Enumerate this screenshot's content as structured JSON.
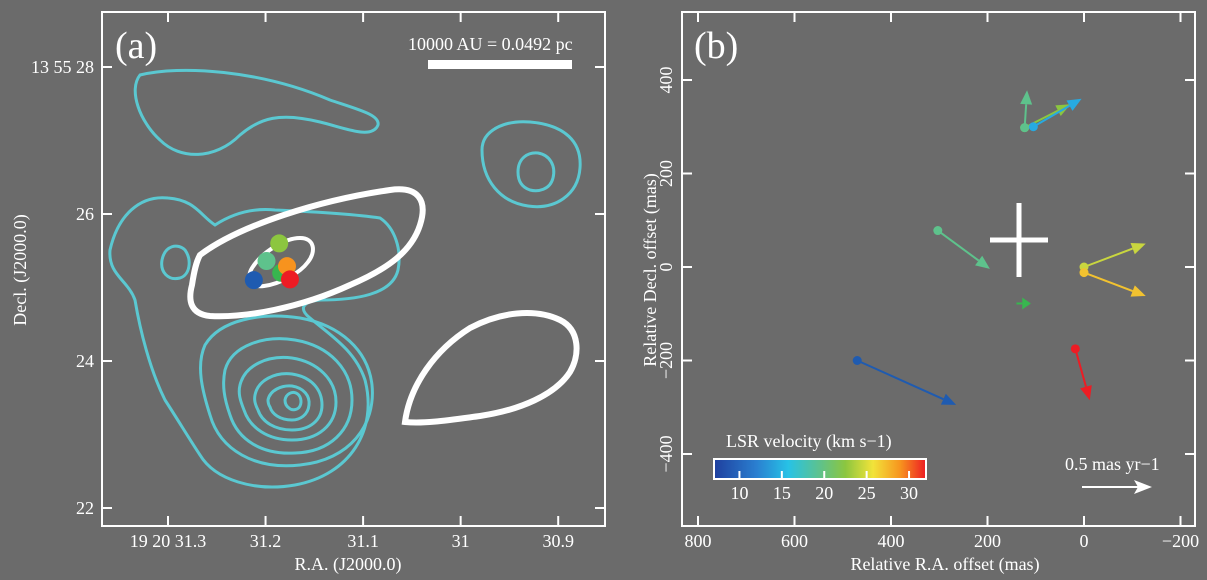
{
  "chart_data": [
    {
      "type": "scatter",
      "panel_label": "(a)",
      "xlabel": "R.A. (J2000.0)",
      "ylabel": "Decl. (J2000.0)",
      "xticks": [
        {
          "value": 31.3,
          "label": "19 20 31.3"
        },
        {
          "value": 31.2,
          "label": "31.2"
        },
        {
          "value": 31.1,
          "label": "31.1"
        },
        {
          "value": 31.0,
          "label": "31"
        },
        {
          "value": 30.9,
          "label": "30.9"
        }
      ],
      "yticks": [
        {
          "value": 28,
          "label": "13 55 28"
        },
        {
          "value": 26,
          "label": "26"
        },
        {
          "value": 24,
          "label": "24"
        },
        {
          "value": 22,
          "label": "22"
        }
      ],
      "scale_bar": "10000 AU = 0.0492 pc",
      "maser_spots": [
        {
          "ra": 31.212,
          "dec": 25.1,
          "color": "#1f5bb0"
        },
        {
          "ra": 31.199,
          "dec": 25.36,
          "color": "#5ec28c"
        },
        {
          "ra": 31.186,
          "dec": 25.6,
          "color": "#8cc63f"
        },
        {
          "ra": 31.184,
          "dec": 25.2,
          "color": "#38b64f"
        },
        {
          "ra": 31.178,
          "dec": 25.29,
          "color": "#f7931e"
        },
        {
          "ra": 31.175,
          "dec": 25.11,
          "color": "#ed1c24"
        }
      ]
    },
    {
      "type": "scatter",
      "panel_label": "(b)",
      "xlabel": "Relative R.A. offset (mas)",
      "ylabel": "Relative Decl. offset (mas)",
      "xlim": [
        840,
        -250
      ],
      "ylim": [
        -500,
        500
      ],
      "xticks": [
        800,
        600,
        400,
        200,
        0,
        -200
      ],
      "xtick_labels": [
        "800",
        "600",
        "400",
        "200",
        "0",
        "−200"
      ],
      "yticks": [
        400,
        200,
        0,
        -200,
        -400
      ],
      "ytick_labels": [
        "400",
        "200",
        "0",
        "−200",
        "−400"
      ],
      "colorbar": {
        "title": "LSR velocity (km s−1)",
        "ticks": [
          10,
          15,
          20,
          25,
          30
        ],
        "range": [
          7,
          32
        ]
      },
      "reference_arrow_label": "0.5 mas yr−1",
      "spots": [
        {
          "x": 470,
          "y": -200,
          "dx": -205,
          "dy": -95,
          "color": "#1f5bb0"
        },
        {
          "x": 303,
          "y": 78,
          "dx": -108,
          "dy": -82,
          "color": "#5ec28c"
        },
        {
          "x": 123,
          "y": 298,
          "dx": -95,
          "dy": 50,
          "color": "#8cc63f"
        },
        {
          "x": 123,
          "y": 298,
          "dx": -5,
          "dy": 80,
          "color": "#5ec28c"
        },
        {
          "x": 105,
          "y": 300,
          "dx": -100,
          "dy": 60,
          "color": "#27aae1"
        },
        {
          "x": 0,
          "y": 0,
          "dx": -128,
          "dy": 50,
          "color": "#c9d63f"
        },
        {
          "x": 0,
          "y": -12,
          "dx": -128,
          "dy": -50,
          "color": "#f2c230"
        },
        {
          "x": 140,
          "y": -78,
          "dx": -30,
          "dy": 0,
          "color": "#38b64f"
        },
        {
          "x": 18,
          "y": -175,
          "dx": -30,
          "dy": -110,
          "color": "#ed1c24"
        }
      ]
    }
  ]
}
